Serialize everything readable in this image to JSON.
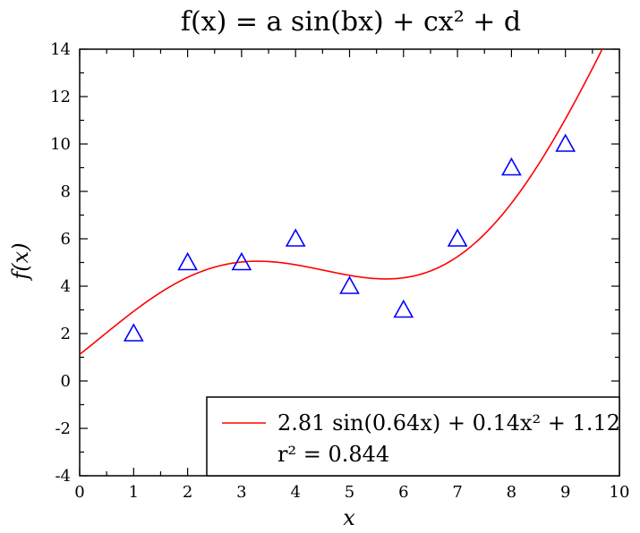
{
  "chart_data": {
    "type": "scatter",
    "title": "f(x) = a sin(bx) + cx² + d",
    "xlabel": "x",
    "ylabel": "f(x)",
    "xlim": [
      0,
      10
    ],
    "ylim": [
      -4,
      14
    ],
    "xticks": [
      "0",
      "1",
      "2",
      "3",
      "4",
      "5",
      "6",
      "7",
      "8",
      "9",
      "10"
    ],
    "yticks": [
      "-4",
      "-2",
      "0",
      "2",
      "4",
      "6",
      "8",
      "10",
      "12",
      "14"
    ],
    "grid": false,
    "legend_position": "bottom-right",
    "series": [
      {
        "kind": "points",
        "marker": "triangle-open",
        "color": "#0000ff",
        "x": [
          1,
          2,
          3,
          4,
          5,
          6,
          7,
          8,
          9
        ],
        "y": [
          2,
          5,
          5,
          6,
          4,
          3,
          6,
          9,
          10
        ]
      },
      {
        "kind": "fit",
        "name": "2.81 sin(0.64x) + 0.14x² + 1.12",
        "color": "#ff0000",
        "params": {
          "a": 2.81,
          "b": 0.64,
          "c": 0.14,
          "d": 1.12
        }
      }
    ],
    "annotation": "r² = 0.844"
  }
}
